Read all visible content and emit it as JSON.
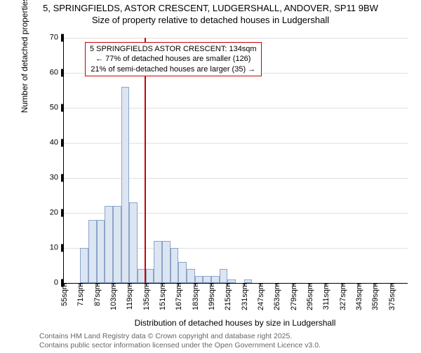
{
  "title": {
    "line1": "5, SPRINGFIELDS, ASTOR CRESCENT, LUDGERSHALL, ANDOVER, SP11 9BW",
    "line2": "Size of property relative to detached houses in Ludgershall"
  },
  "chart": {
    "type": "histogram",
    "ylim": [
      0,
      70
    ],
    "ytick_step": 10,
    "bar_fill": "#dce5f2",
    "bar_border": "#8ca5c9",
    "marker_color": "#cc0000",
    "grid_color": "#e0e0e0",
    "x_start": 55,
    "x_step": 16,
    "x_count": 21,
    "bin_width": 8,
    "values": [
      0,
      0,
      10,
      18,
      18,
      22,
      22,
      56,
      23,
      4,
      4,
      12,
      12,
      10,
      6,
      4,
      2,
      2,
      2,
      4,
      1,
      0,
      1,
      0,
      0,
      0,
      0,
      0,
      0,
      0,
      0,
      0,
      0,
      0,
      0,
      0,
      0,
      0,
      0,
      0,
      0
    ],
    "marker_sqm": 134,
    "y_label": "Number of detached properties",
    "x_label": "Distribution of detached houses by size in Ludgershall"
  },
  "infobox": {
    "line1": "5 SPRINGFIELDS ASTOR CRESCENT: 134sqm",
    "line2": "← 77% of detached houses are smaller (126)",
    "line3": "21% of semi-detached houses are larger (35) →"
  },
  "footer": {
    "line1": "Contains HM Land Registry data © Crown copyright and database right 2025.",
    "line2": "Contains public sector information licensed under the Open Government Licence v3.0."
  }
}
